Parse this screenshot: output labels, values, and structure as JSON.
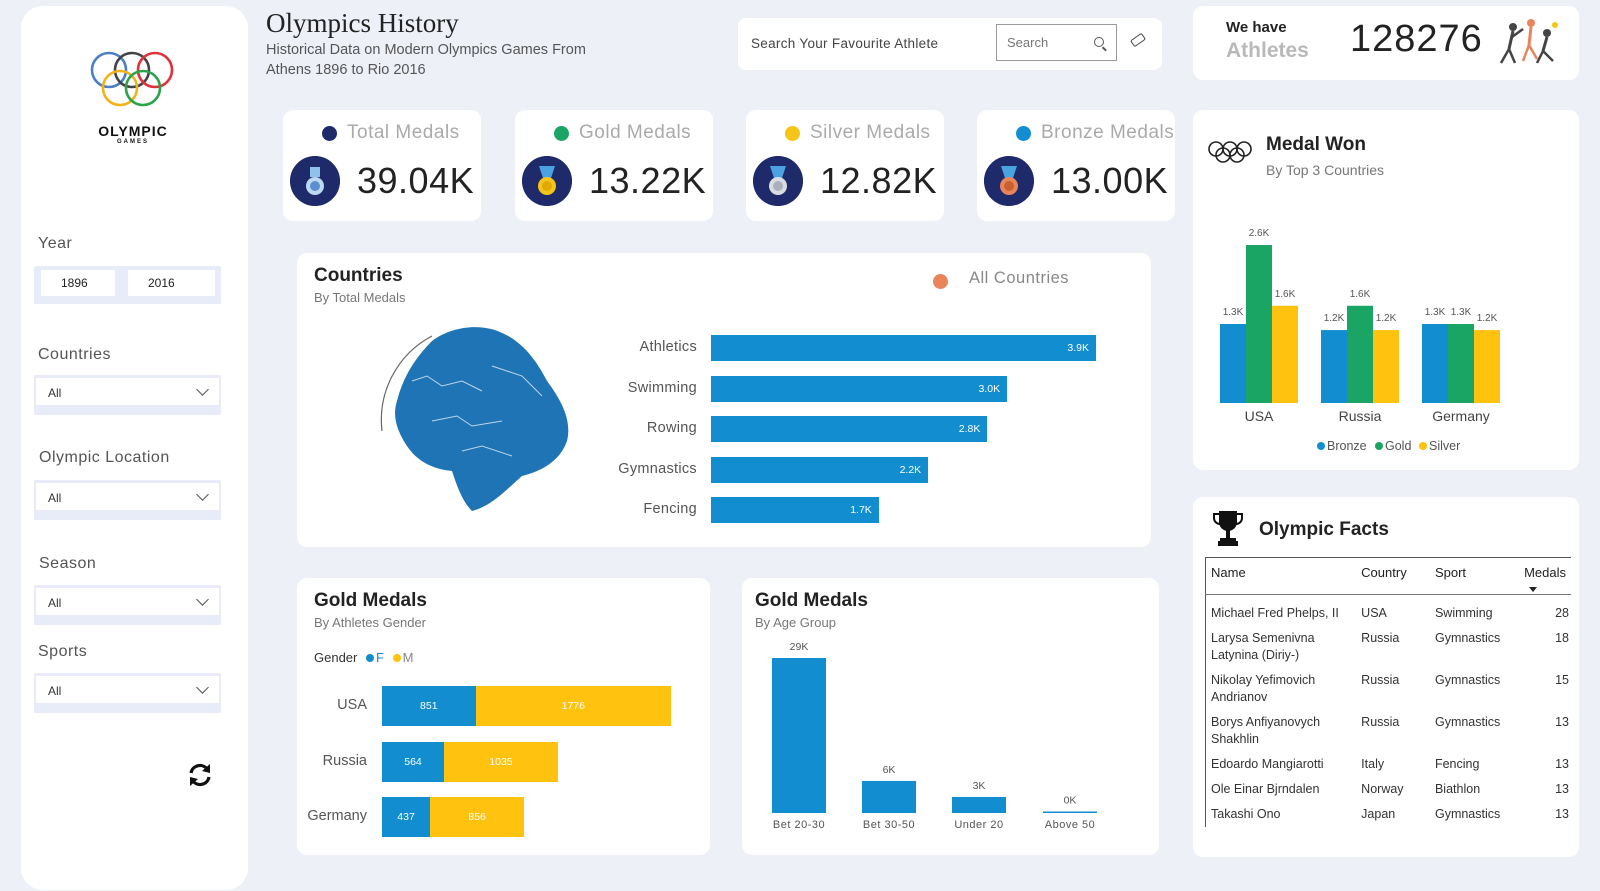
{
  "header": {
    "title": "Olympics History",
    "subtitle": "Historical Data on Modern Olympics Games From Athens 1896 to Rio 2016",
    "search_prompt": "Search Your Favourite Athlete",
    "search_placeholder": "Search"
  },
  "athletes": {
    "we_have": "We have",
    "label": "Athletes",
    "count": "128276"
  },
  "logo": {
    "word": "OLYMPIC",
    "sub": "GAMES"
  },
  "sidebar": {
    "year_label": "Year",
    "year_from": "1896",
    "year_to": "2016",
    "filters": [
      {
        "label": "Countries",
        "value": "All"
      },
      {
        "label": "Olympic Location",
        "value": "All"
      },
      {
        "label": "Season",
        "value": "All"
      },
      {
        "label": "Sports",
        "value": "All"
      }
    ]
  },
  "kpis": [
    {
      "label": "Total Medals",
      "value": "39.04K",
      "color": "#1f2a6b"
    },
    {
      "label": "Gold Medals",
      "value": "13.22K",
      "color": "#1aa564"
    },
    {
      "label": "Silver Medals",
      "value": "12.82K",
      "color": "#f5c518"
    },
    {
      "label": "Bronze Medals",
      "value": "13.00K",
      "color": "#118dd0"
    }
  ],
  "countries_card": {
    "title": "Countries",
    "subtitle": "By Total Medals",
    "legend": "All Countries"
  },
  "medal_won_card": {
    "title": "Medal Won",
    "subtitle": "By Top 3 Countries"
  },
  "gender_card": {
    "title": "Gold Medals",
    "subtitle": "By Athletes Gender",
    "legend_title": "Gender",
    "legend_f": "F",
    "legend_m": "M"
  },
  "age_card": {
    "title": "Gold Medals",
    "subtitle": "By Age Group"
  },
  "facts": {
    "title": "Olympic Facts",
    "columns": [
      "Name",
      "Country",
      "Sport",
      "Medals"
    ],
    "rows": [
      [
        "Michael Fred Phelps, II",
        "USA",
        "Swimming",
        "28"
      ],
      [
        "Larysa Semenivna Latynina (Diriy-)",
        "Russia",
        "Gymnastics",
        "18"
      ],
      [
        "Nikolay Yefimovich Andrianov",
        "Russia",
        "Gymnastics",
        "15"
      ],
      [
        "Borys Anfiyanovych Shakhlin",
        "Russia",
        "Gymnastics",
        "13"
      ],
      [
        "Edoardo Mangiarotti",
        "Italy",
        "Fencing",
        "13"
      ],
      [
        "Ole Einar Bjrndalen",
        "Norway",
        "Biathlon",
        "13"
      ],
      [
        "Takashi Ono",
        "Japan",
        "Gymnastics",
        "13"
      ]
    ]
  },
  "colors": {
    "blue": "#118dd0",
    "green": "#1aa564",
    "yellow": "#ffc20e",
    "orange": "#e8855b"
  },
  "chart_data": [
    {
      "type": "bar",
      "title": "Countries",
      "subtitle": "By Total Medals",
      "categories": [
        "Athletics",
        "Swimming",
        "Rowing",
        "Gymnastics",
        "Fencing"
      ],
      "values": [
        3900,
        3000,
        2800,
        2200,
        1700
      ],
      "labels": [
        "3.9K",
        "3.0K",
        "2.8K",
        "2.2K",
        "1.7K"
      ],
      "series": [
        {
          "name": "All Countries",
          "values": [
            3900,
            3000,
            2800,
            2200,
            1700
          ]
        }
      ],
      "orientation": "horizontal",
      "legend": "top-right"
    },
    {
      "type": "bar",
      "title": "Medal Won",
      "subtitle": "By Top 3 Countries",
      "categories": [
        "USA",
        "Russia",
        "Germany"
      ],
      "series": [
        {
          "name": "Bronze",
          "values": [
            1300,
            1200,
            1300
          ],
          "labels": [
            "1.3K",
            "1.2K",
            "1.3K"
          ]
        },
        {
          "name": "Gold",
          "values": [
            2600,
            1600,
            1300
          ],
          "labels": [
            "2.6K",
            "1.6K",
            "1.3K"
          ]
        },
        {
          "name": "Silver",
          "values": [
            1600,
            1200,
            1200
          ],
          "labels": [
            "1.6K",
            "1.2K",
            "1.2K"
          ]
        }
      ],
      "legend": "bottom"
    },
    {
      "type": "bar",
      "title": "Gold Medals",
      "subtitle": "By Athletes Gender",
      "stacked": true,
      "orientation": "horizontal",
      "categories": [
        "USA",
        "Russia",
        "Germany"
      ],
      "series": [
        {
          "name": "F",
          "values": [
            851,
            564,
            437
          ]
        },
        {
          "name": "M",
          "values": [
            1776,
            1035,
            856
          ]
        }
      ],
      "legend": "top-left"
    },
    {
      "type": "bar",
      "title": "Gold Medals",
      "subtitle": "By Age Group",
      "categories": [
        "Bet 20-30",
        "Bet 30-50",
        "Under 20",
        "Above 50"
      ],
      "values": [
        29000,
        6000,
        3000,
        0
      ],
      "labels": [
        "29K",
        "6K",
        "3K",
        "0K"
      ]
    }
  ]
}
